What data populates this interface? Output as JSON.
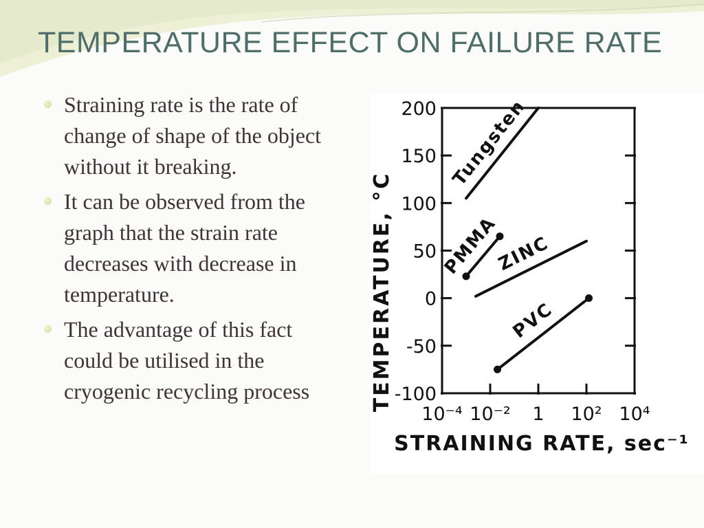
{
  "slide": {
    "title": "TEMPERATURE EFFECT ON FAILURE RATE",
    "bullets": [
      "Straining rate is the rate of change of shape of the object without it breaking.",
      "It can be observed from the graph that the strain rate decreases with decrease in temperature.",
      "The advantage of this fact could be utilised in the cryogenic recycling process"
    ]
  },
  "chart_data": {
    "type": "line",
    "xlabel": "STRAINING RATE, sec⁻¹",
    "ylabel": "TEMPERATURE, °C",
    "xscale": "log10",
    "xlim": [
      -4,
      4
    ],
    "ylim": [
      -100,
      200
    ],
    "x_tick_labels": [
      "10⁻⁴",
      "10⁻²",
      "1",
      "10²",
      "10⁴"
    ],
    "y_ticks": [
      200,
      150,
      100,
      50,
      0,
      -50,
      -100
    ],
    "series": [
      {
        "name": "Tungsten",
        "x": [
          -3,
          0
        ],
        "y": [
          105,
          200
        ],
        "markers": false
      },
      {
        "name": "PMMA",
        "x": [
          -3,
          -1.6
        ],
        "y": [
          23,
          65
        ],
        "markers": true
      },
      {
        "name": "ZINC",
        "x": [
          -2.6,
          2
        ],
        "y": [
          2,
          60
        ],
        "markers": false
      },
      {
        "name": "PVC",
        "x": [
          -1.7,
          2.1
        ],
        "y": [
          -75,
          0
        ],
        "markers": true
      }
    ],
    "grid": false,
    "legend": "none"
  },
  "colors": {
    "title": "#4f6d6a",
    "body_text": "#3f3434",
    "chart_ink": "#111111"
  }
}
